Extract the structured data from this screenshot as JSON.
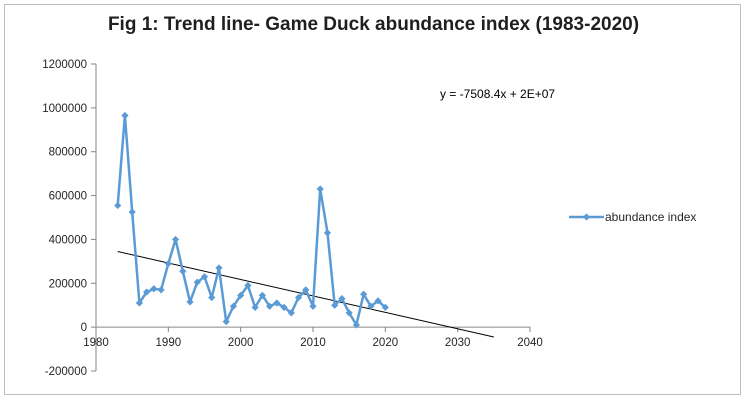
{
  "chart_data": {
    "type": "line",
    "title": "Fig 1: Trend line-  Game Duck abundance index (1983-2020)",
    "xlim": [
      1980,
      2040
    ],
    "ylim": [
      -200000,
      1200000
    ],
    "x_ticks": [
      "1980",
      "1990",
      "2000",
      "2010",
      "2020",
      "2030",
      "2040"
    ],
    "y_ticks": [
      "1200000",
      "1000000",
      "800000",
      "600000",
      "400000",
      "200000",
      "0",
      "-200000"
    ],
    "grid": false,
    "legend_position": "right",
    "series": [
      {
        "name": "abundance index",
        "color": "#5b9bd5",
        "marker": "diamond",
        "x": [
          1983,
          1984,
          1985,
          1986,
          1987,
          1988,
          1989,
          1990,
          1991,
          1992,
          1993,
          1994,
          1995,
          1996,
          1997,
          1998,
          1999,
          2000,
          2001,
          2002,
          2003,
          2004,
          2005,
          2006,
          2007,
          2008,
          2009,
          2010,
          2011,
          2012,
          2013,
          2014,
          2015,
          2016,
          2017,
          2018,
          2019,
          2020
        ],
        "y": [
          555000,
          965000,
          525000,
          110000,
          160000,
          175000,
          170000,
          290000,
          400000,
          255000,
          115000,
          205000,
          230000,
          135000,
          270000,
          25000,
          95000,
          145000,
          190000,
          90000,
          145000,
          95000,
          110000,
          90000,
          65000,
          135000,
          170000,
          95000,
          630000,
          430000,
          100000,
          130000,
          65000,
          10000,
          150000,
          95000,
          120000,
          90000
        ]
      }
    ],
    "trendline": {
      "equation": "y = -7508.4x + 2E+07",
      "x": [
        1983,
        2035
      ],
      "y": [
        345000,
        -45000
      ],
      "color": "#000000"
    }
  }
}
